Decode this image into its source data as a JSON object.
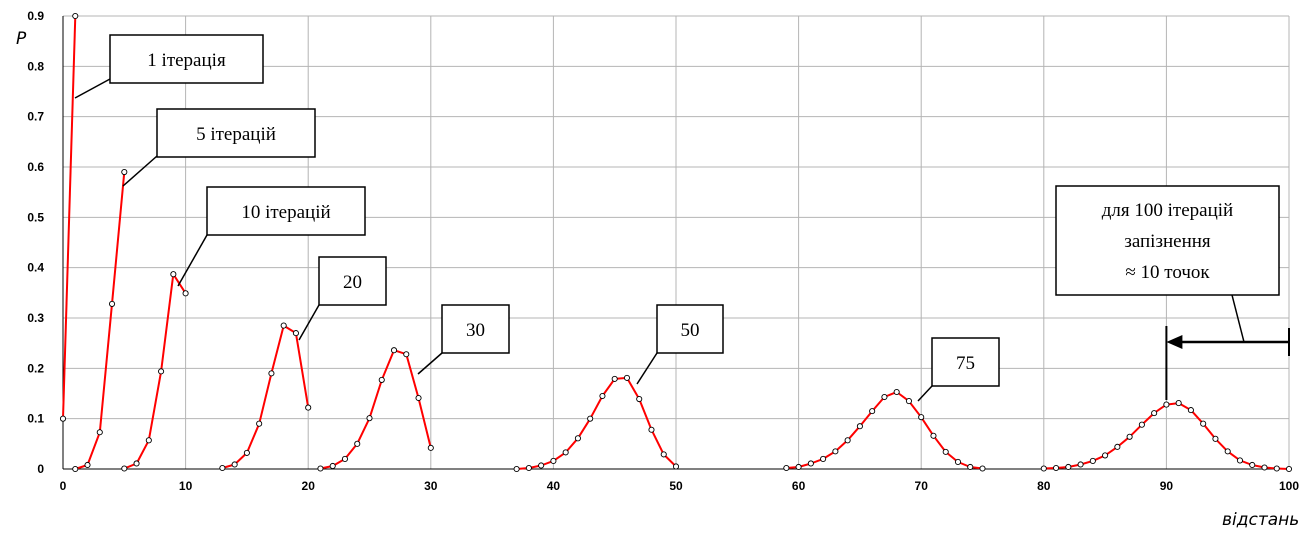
{
  "chart_data": {
    "type": "line",
    "xlabel": "відстань",
    "ylabel": "P",
    "xlim": [
      0,
      100
    ],
    "ylim": [
      0,
      0.9
    ],
    "x_ticks": [
      0,
      10,
      20,
      30,
      40,
      50,
      60,
      70,
      80,
      90,
      100
    ],
    "y_ticks": [
      0,
      0.1,
      0.2,
      0.3,
      0.4,
      0.5,
      0.6,
      0.7,
      0.8,
      0.9
    ],
    "grid": true,
    "line_color": "#ff0000",
    "marker_fill": "#ffffff",
    "marker_stroke": "#000000",
    "series": [
      {
        "x": [
          0,
          1
        ],
        "y": [
          0.1,
          0.9
        ]
      },
      {
        "x": [
          1,
          2,
          3,
          4,
          5
        ],
        "y": [
          0.0,
          0.008,
          0.073,
          0.328,
          0.59
        ]
      },
      {
        "x": [
          5,
          6,
          7,
          8,
          9,
          10
        ],
        "y": [
          0.001,
          0.011,
          0.057,
          0.194,
          0.387,
          0.349
        ]
      },
      {
        "x": [
          13,
          14,
          15,
          16,
          17,
          18,
          19,
          20
        ],
        "y": [
          0.002,
          0.009,
          0.032,
          0.09,
          0.19,
          0.285,
          0.27,
          0.122
        ]
      },
      {
        "x": [
          21,
          22,
          23,
          24,
          25,
          26,
          27,
          28,
          29,
          30
        ],
        "y": [
          0.001,
          0.006,
          0.02,
          0.05,
          0.101,
          0.177,
          0.236,
          0.228,
          0.141,
          0.042
        ]
      },
      {
        "x": [
          37,
          38,
          39,
          40,
          41,
          42,
          43,
          44,
          45,
          46,
          47,
          48,
          49,
          50
        ],
        "y": [
          0.0,
          0.002,
          0.007,
          0.016,
          0.033,
          0.061,
          0.1,
          0.145,
          0.179,
          0.181,
          0.139,
          0.078,
          0.029,
          0.005
        ]
      },
      {
        "x": [
          59,
          60,
          61,
          62,
          63,
          64,
          65,
          66,
          67,
          68,
          69,
          70,
          71,
          72,
          73,
          74,
          75
        ],
        "y": [
          0.002,
          0.004,
          0.011,
          0.02,
          0.035,
          0.057,
          0.085,
          0.115,
          0.143,
          0.153,
          0.135,
          0.103,
          0.066,
          0.034,
          0.014,
          0.004,
          0.001
        ]
      },
      {
        "x": [
          80,
          81,
          82,
          83,
          84,
          85,
          86,
          87,
          88,
          89,
          90,
          91,
          92,
          93,
          94,
          95,
          96,
          97,
          98,
          99,
          100
        ],
        "y": [
          0.001,
          0.002,
          0.004,
          0.009,
          0.016,
          0.027,
          0.044,
          0.064,
          0.088,
          0.111,
          0.128,
          0.131,
          0.117,
          0.09,
          0.06,
          0.035,
          0.017,
          0.008,
          0.003,
          0.001,
          0.0
        ]
      }
    ],
    "annotations": [
      {
        "label": "1 ітерація"
      },
      {
        "label": "5 ітерацій"
      },
      {
        "label": "10 ітерацій"
      },
      {
        "label": "20"
      },
      {
        "label": "30"
      },
      {
        "label": "50"
      },
      {
        "label": "75"
      },
      {
        "lines": [
          "для 100 ітерацій",
          "запізнення",
          "≈ 10 точок"
        ]
      }
    ],
    "delay_arrow": {
      "from_x": 100,
      "to_x": 90
    }
  }
}
